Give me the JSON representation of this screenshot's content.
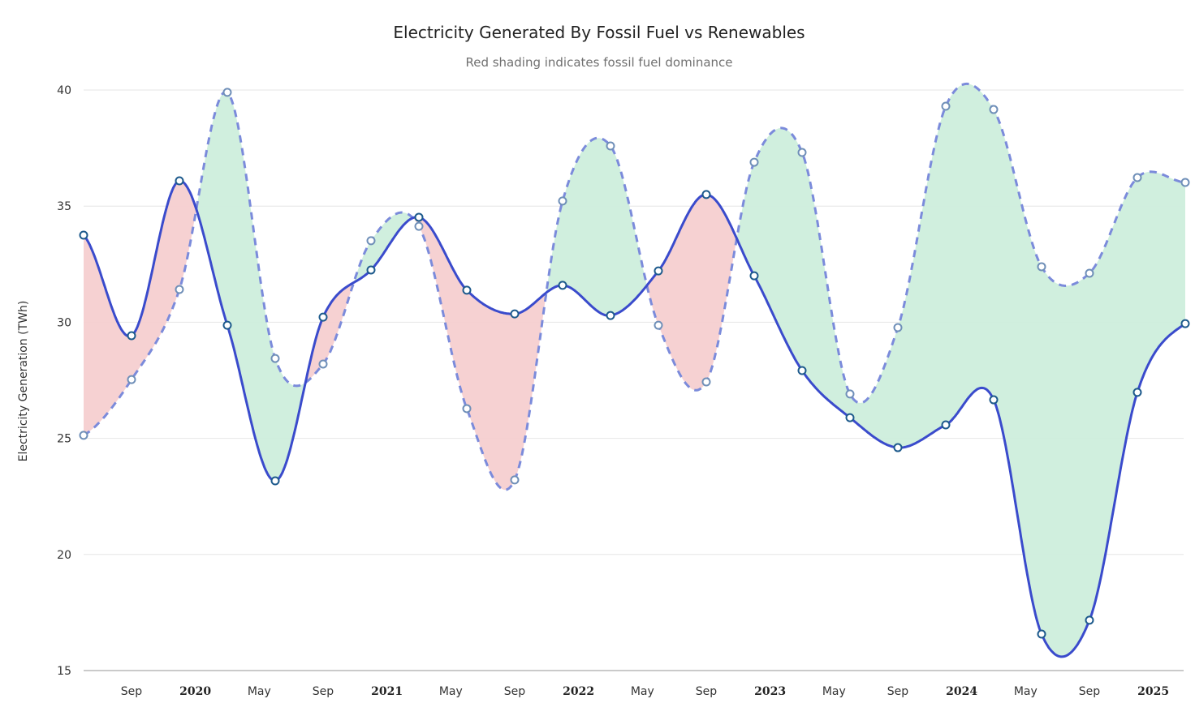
{
  "chart_data": {
    "type": "line",
    "title": "Electricity Generated By Fossil Fuel vs Renewables",
    "subtitle": "Red shading indicates fossil fuel dominance",
    "xlabel": "",
    "ylabel": "Electricity Generation (TWh)",
    "ylim": [
      15,
      40
    ],
    "yticks": [
      15,
      20,
      25,
      30,
      35,
      40
    ],
    "grid": true,
    "x": [
      "Jun 2019",
      "Sep 2019",
      "Dec 2019",
      "Mar 2020",
      "Jun 2020",
      "Sep 2020",
      "Dec 2020",
      "Mar 2021",
      "Jun 2021",
      "Sep 2021",
      "Dec 2021",
      "Mar 2022",
      "Jun 2022",
      "Sep 2022",
      "Dec 2022",
      "Mar 2023",
      "Jun 2023",
      "Sep 2023",
      "Dec 2023",
      "Mar 2024",
      "Jun 2024",
      "Sep 2024",
      "Dec 2024",
      "Mar 2025"
    ],
    "xrange_months": [
      0,
      69
    ],
    "xticks": [
      {
        "label": "Sep",
        "month": 3,
        "major": false
      },
      {
        "label": "2020",
        "month": 7,
        "major": true
      },
      {
        "label": "May",
        "month": 11,
        "major": false
      },
      {
        "label": "Sep",
        "month": 15,
        "major": false
      },
      {
        "label": "2021",
        "month": 19,
        "major": true
      },
      {
        "label": "May",
        "month": 23,
        "major": false
      },
      {
        "label": "Sep",
        "month": 27,
        "major": false
      },
      {
        "label": "2022",
        "month": 31,
        "major": true
      },
      {
        "label": "May",
        "month": 35,
        "major": false
      },
      {
        "label": "Sep",
        "month": 39,
        "major": false
      },
      {
        "label": "2023",
        "month": 43,
        "major": true
      },
      {
        "label": "May",
        "month": 47,
        "major": false
      },
      {
        "label": "Sep",
        "month": 51,
        "major": false
      },
      {
        "label": "2024",
        "month": 55,
        "major": true
      },
      {
        "label": "May",
        "month": 59,
        "major": false
      },
      {
        "label": "Sep",
        "month": 63,
        "major": false
      },
      {
        "label": "2025",
        "month": 67,
        "major": true
      }
    ],
    "series": [
      {
        "name": "Fossil Fuel",
        "style": "solid",
        "color": "#3a4bcc",
        "marker_color": "#1d5a8c",
        "values": [
          33.75,
          29.42,
          36.09,
          29.87,
          23.17,
          30.22,
          32.25,
          34.52,
          31.38,
          30.36,
          31.59,
          30.29,
          32.21,
          35.5,
          32.0,
          27.92,
          25.89,
          24.6,
          25.58,
          26.66,
          16.57,
          17.17,
          26.98,
          29.94
        ]
      },
      {
        "name": "Renewables",
        "style": "dashed",
        "color": "#7b8bdb",
        "marker_color": "#6f8fb8",
        "values": [
          25.13,
          27.53,
          31.41,
          39.9,
          28.44,
          28.2,
          33.51,
          34.13,
          26.28,
          23.21,
          35.22,
          37.59,
          29.87,
          27.43,
          36.89,
          37.31,
          26.91,
          29.77,
          39.3,
          39.16,
          32.39,
          32.11,
          36.23,
          36.02
        ]
      }
    ],
    "fill_colors": {
      "fossil_dominant": "#f6cfd0",
      "renewable_dominant": "#cdeedc"
    },
    "legend": "none"
  }
}
